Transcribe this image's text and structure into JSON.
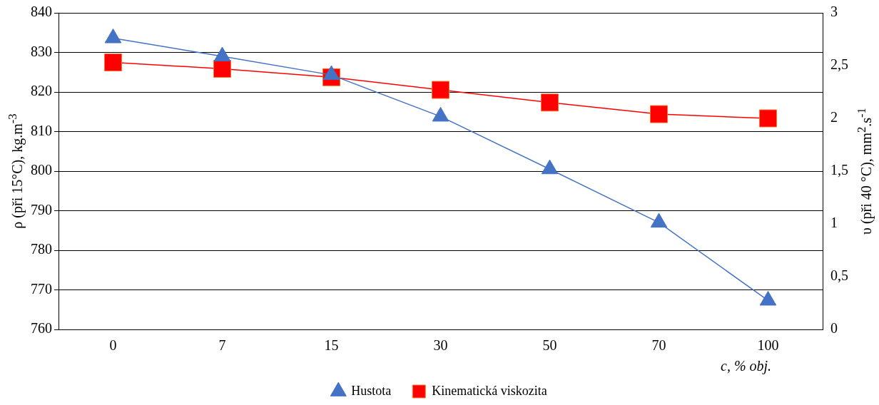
{
  "chart_data": {
    "type": "line",
    "categories": [
      "0",
      "7",
      "15",
      "30",
      "50",
      "70",
      "100"
    ],
    "xlabel": "c, % obj.",
    "ylabel": "ρ (při 15°C), kg.m$^{-3}$",
    "y2label": "υ (při 40 °C), mm$^{2}$.s$^{-1}$",
    "series": [
      {
        "name": "Hustota",
        "color": "#4472c4",
        "marker": "triangle",
        "values": [
          833.6,
          829,
          824.3,
          813.8,
          800.5,
          787,
          767.3
        ]
      },
      {
        "name": "Kinematická viskozita",
        "color": "#ff0000",
        "marker": "square",
        "axis": "y2",
        "values": [
          2.53,
          2.47,
          2.39,
          2.27,
          2.15,
          2.04,
          2.0
        ]
      }
    ],
    "ylim": [
      760,
      840
    ],
    "yticks": [
      760,
      770,
      780,
      790,
      800,
      810,
      820,
      830,
      840
    ],
    "y2lim": [
      0,
      3
    ],
    "y2ticks": [
      0,
      {
        "value": 0.5,
        "label": "0,5"
      },
      1,
      {
        "value": 1.5,
        "label": "1,5"
      },
      2,
      {
        "value": 2.5,
        "label": "2,5"
      },
      3
    ],
    "grid": "y",
    "legend": "bottom",
    "line_style": "solid"
  }
}
